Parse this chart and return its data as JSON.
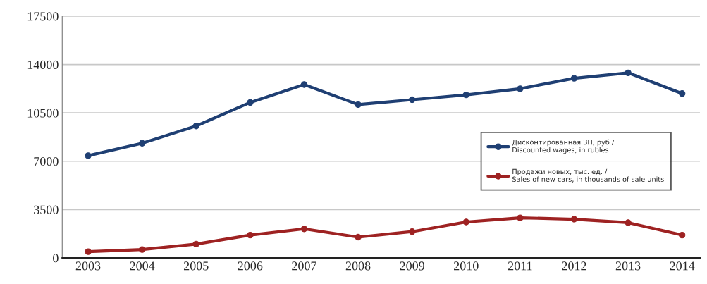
{
  "chart_data": {
    "type": "line",
    "categories": [
      "2003",
      "2004",
      "2005",
      "2006",
      "2007",
      "2008",
      "2009",
      "2010",
      "2011",
      "2012",
      "2013",
      "2014"
    ],
    "series": [
      {
        "name": "Дисконтированная ЗП, руб /\nDiscounted wages, in rubles",
        "color": "#1f3f73",
        "values": [
          7400,
          8300,
          9550,
          11250,
          12550,
          11100,
          11450,
          11800,
          12250,
          13000,
          13400,
          11900
        ]
      },
      {
        "name": "Продажи новых, тыс. ед. /\nSales of new cars, in thousands of sale units",
        "color": "#9e2222",
        "values": [
          450,
          600,
          1000,
          1650,
          2100,
          1500,
          1900,
          2600,
          2900,
          2800,
          2550,
          1650
        ]
      }
    ],
    "ylim": [
      0,
      17500
    ],
    "yticks": [
      0,
      3500,
      7000,
      10500,
      14000,
      17500
    ],
    "grid": "y",
    "legend": "center right",
    "marker": "circle",
    "line_style": "solid"
  }
}
